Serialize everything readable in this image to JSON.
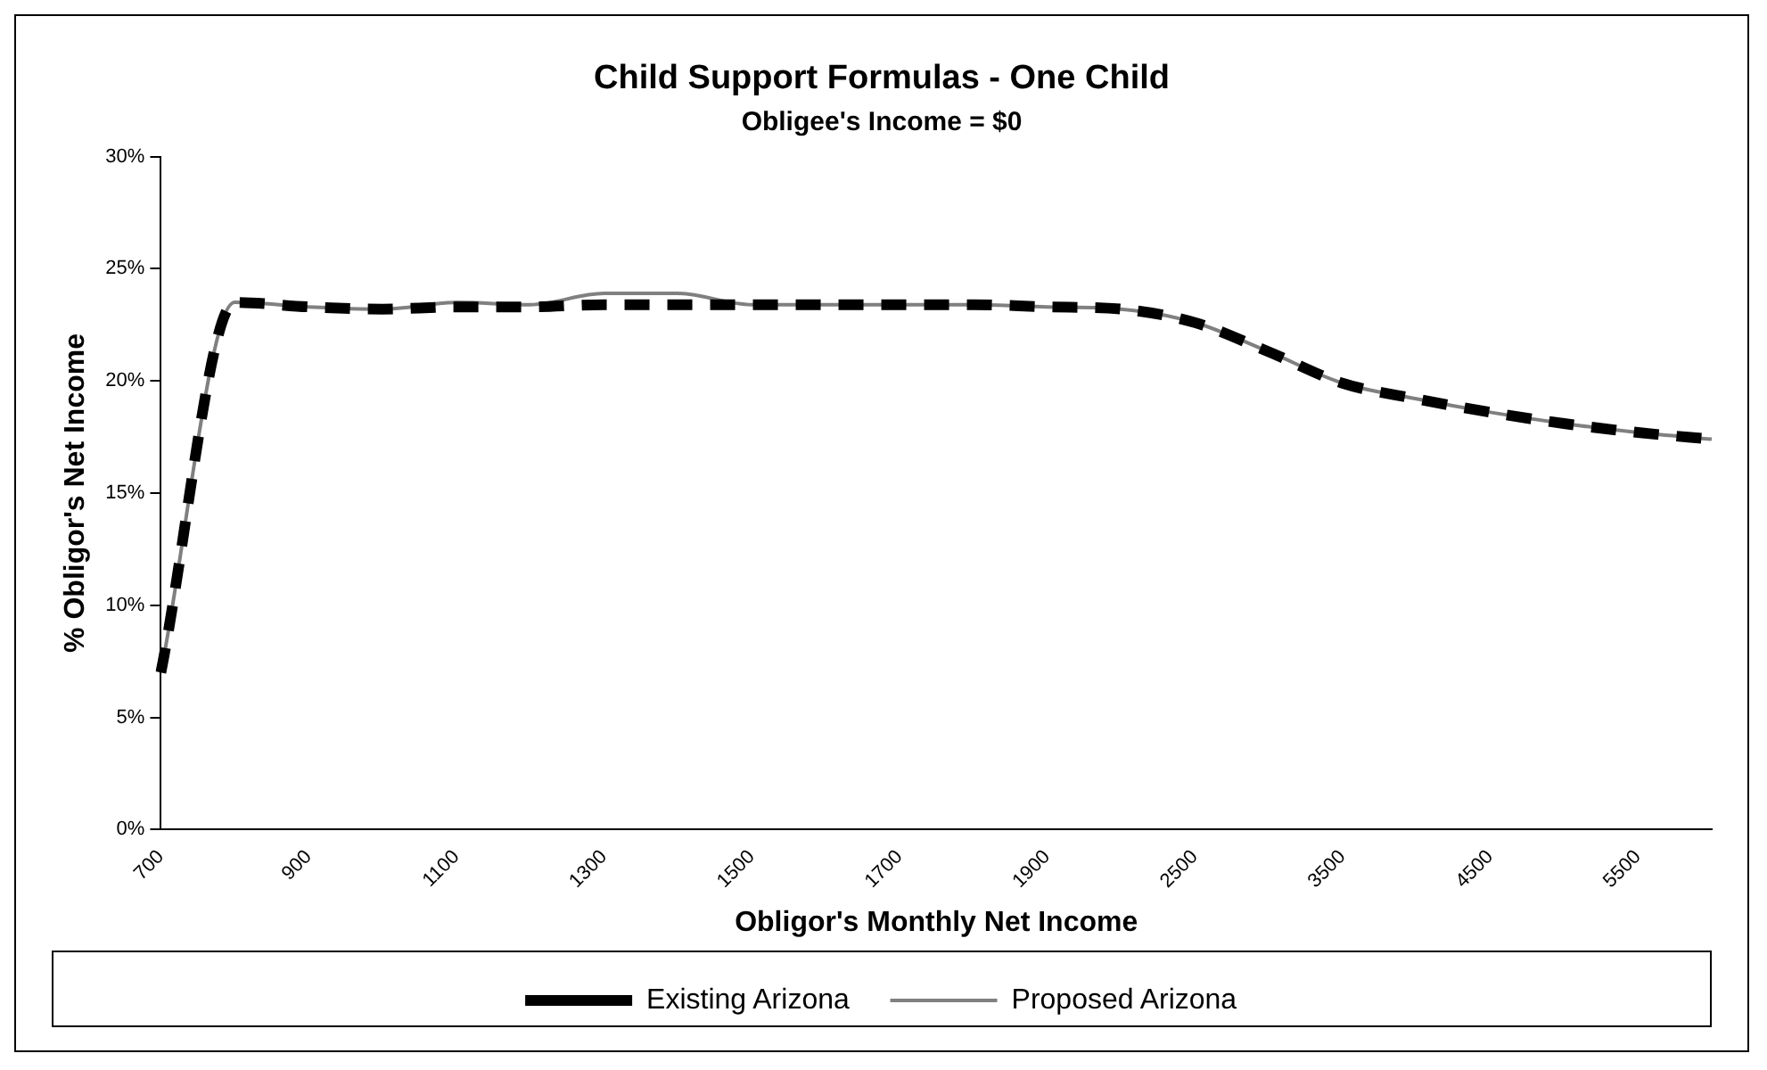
{
  "chart_data": {
    "type": "line",
    "title": "Child Support Formulas - One Child",
    "subtitle": "Obligee's Income = $0",
    "xlabel": "Obligor's Monthly Net Income",
    "ylabel": "% Obligor's Net Income",
    "categories": [
      "700",
      null,
      "900",
      null,
      "1100",
      null,
      "1300",
      null,
      "1500",
      null,
      "1700",
      null,
      "1900",
      null,
      "2500",
      null,
      "3500",
      null,
      "4500",
      null,
      "5500",
      null
    ],
    "series": [
      {
        "name": "Existing Arizona",
        "color": "#000000",
        "line_style": "dashed",
        "values": [
          7,
          23.5,
          23.3,
          23.2,
          23.3,
          23.3,
          23.4,
          23.4,
          23.4,
          23.4,
          23.4,
          23.4,
          23.3,
          23.2,
          22.6,
          21.3,
          19.9,
          19.2,
          18.6,
          18.1,
          17.7,
          17.4
        ]
      },
      {
        "name": "Proposed Arizona",
        "color": "#808080",
        "line_style": "solid",
        "values": [
          7,
          23.5,
          23.3,
          23.2,
          23.5,
          23.4,
          23.9,
          23.9,
          23.4,
          23.4,
          23.4,
          23.4,
          23.3,
          23.2,
          22.6,
          21.3,
          19.9,
          19.2,
          18.6,
          18.1,
          17.7,
          17.4
        ]
      }
    ],
    "ylim": [
      0,
      30
    ],
    "yticks": [
      {
        "value": 0,
        "label": "0%"
      },
      {
        "value": 5,
        "label": "5%"
      },
      {
        "value": 10,
        "label": "10%"
      },
      {
        "value": 15,
        "label": "15%"
      },
      {
        "value": 20,
        "label": "20%"
      },
      {
        "value": 25,
        "label": "25%"
      },
      {
        "value": 30,
        "label": "30%"
      }
    ],
    "grid": false,
    "legend": "bottom",
    "marker": "none"
  }
}
